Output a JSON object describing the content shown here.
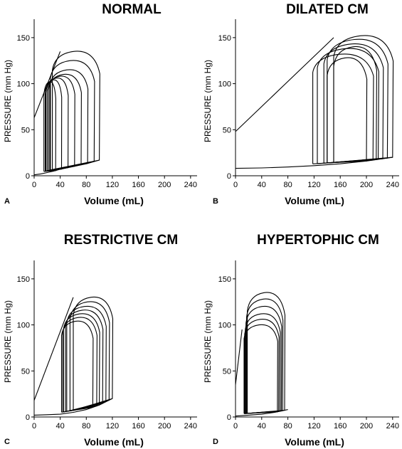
{
  "chart_data": [
    {
      "type": "line",
      "panel_letter": "A",
      "title": "NORMAL",
      "xlabel": "Volume (mL)",
      "ylabel": "PRESSURE (mm Hg)",
      "xlim": [
        0,
        250
      ],
      "ylim": [
        0,
        170
      ],
      "xticks": [
        "0",
        "40",
        "80",
        "120",
        "160",
        "200",
        "240"
      ],
      "yticks": [
        "0",
        "50",
        "100",
        "150"
      ],
      "line": {
        "x": [
          0,
          40
        ],
        "y": [
          63,
          135
        ]
      },
      "edpvr": {
        "x": [
          0,
          10,
          20,
          30,
          40,
          50,
          60,
          70,
          80,
          90,
          100
        ],
        "y": [
          1,
          2,
          3.5,
          5,
          7,
          8.5,
          10,
          11.5,
          13,
          15,
          17
        ]
      },
      "loops": [
        {
          "esv": 28,
          "edv": 100,
          "peak": 135
        },
        {
          "esv": 25,
          "edv": 92,
          "peak": 125
        },
        {
          "esv": 24,
          "edv": 82,
          "peak": 115
        },
        {
          "esv": 22,
          "edv": 72,
          "peak": 110
        },
        {
          "esv": 20,
          "edv": 62,
          "peak": 108
        },
        {
          "esv": 18,
          "edv": 52,
          "peak": 106
        },
        {
          "esv": 17,
          "edv": 42,
          "peak": 104
        },
        {
          "esv": 15,
          "edv": 33,
          "peak": 102
        }
      ]
    },
    {
      "type": "line",
      "panel_letter": "B",
      "title": "DILATED CM",
      "xlabel": "Volume (mL)",
      "ylabel": "PRESSURE (mm Hg)",
      "xlim": [
        0,
        250
      ],
      "ylim": [
        0,
        170
      ],
      "xticks": [
        "0",
        "40",
        "80",
        "120",
        "160",
        "200",
        "240"
      ],
      "yticks": [
        "0",
        "50",
        "100",
        "150"
      ],
      "line": {
        "x": [
          0,
          150
        ],
        "y": [
          48,
          150
        ]
      },
      "edpvr": {
        "x": [
          0,
          40,
          80,
          120,
          160,
          200,
          240
        ],
        "y": [
          8,
          8.5,
          9.5,
          11,
          13,
          16,
          20
        ]
      },
      "loops": [
        {
          "esv": 150,
          "edv": 240,
          "peak": 152
        },
        {
          "esv": 140,
          "edv": 232,
          "peak": 148
        },
        {
          "esv": 135,
          "edv": 225,
          "peak": 143
        },
        {
          "esv": 125,
          "edv": 218,
          "peak": 138
        },
        {
          "esv": 118,
          "edv": 210,
          "peak": 132
        },
        {
          "esv": 140,
          "edv": 200,
          "peak": 128
        },
        {
          "esv": 150,
          "edv": 215,
          "peak": 140
        }
      ]
    },
    {
      "type": "line",
      "panel_letter": "C",
      "title": "RESTRICTIVE CM",
      "xlabel": "Volume (mL)",
      "ylabel": "PRESSURE (mm Hg)",
      "xlim": [
        0,
        250
      ],
      "ylim": [
        0,
        170
      ],
      "xticks": [
        "0",
        "40",
        "80",
        "120",
        "160",
        "200",
        "240"
      ],
      "yticks": [
        "0",
        "50",
        "100",
        "150"
      ],
      "line": {
        "x": [
          0,
          60
        ],
        "y": [
          18,
          130
        ]
      },
      "edpvr": {
        "x": [
          0,
          20,
          40,
          60,
          80,
          100,
          120
        ],
        "y": [
          2,
          2.5,
          3,
          5,
          8,
          13,
          20
        ]
      },
      "loops": [
        {
          "esv": 60,
          "edv": 120,
          "peak": 130
        },
        {
          "esv": 55,
          "edv": 115,
          "peak": 125
        },
        {
          "esv": 50,
          "edv": 110,
          "peak": 120
        },
        {
          "esv": 48,
          "edv": 105,
          "peak": 116
        },
        {
          "esv": 45,
          "edv": 100,
          "peak": 112
        },
        {
          "esv": 44,
          "edv": 96,
          "peak": 108
        },
        {
          "esv": 42,
          "edv": 90,
          "peak": 104
        }
      ]
    },
    {
      "type": "line",
      "panel_letter": "D",
      "title": "HYPERTOPHIC CM",
      "xlabel": "Volume (mL)",
      "ylabel": "PRESSURE (mm Hg)",
      "xlim": [
        0,
        250
      ],
      "ylim": [
        0,
        170
      ],
      "xticks": [
        "0",
        "40",
        "80",
        "120",
        "160",
        "200",
        "240"
      ],
      "yticks": [
        "0",
        "50",
        "100",
        "150"
      ],
      "line": {
        "x": [
          0,
          10
        ],
        "y": [
          35,
          95
        ]
      },
      "edpvr": {
        "x": [
          0,
          20,
          40,
          60,
          80
        ],
        "y": [
          1,
          2,
          3,
          5,
          8
        ]
      },
      "loops": [
        {
          "esv": 18,
          "edv": 75,
          "peak": 135
        },
        {
          "esv": 17,
          "edv": 72,
          "peak": 128
        },
        {
          "esv": 16,
          "edv": 70,
          "peak": 120
        },
        {
          "esv": 15,
          "edv": 68,
          "peak": 112
        },
        {
          "esv": 14,
          "edv": 66,
          "peak": 106
        },
        {
          "esv": 13,
          "edv": 64,
          "peak": 100
        }
      ]
    }
  ]
}
